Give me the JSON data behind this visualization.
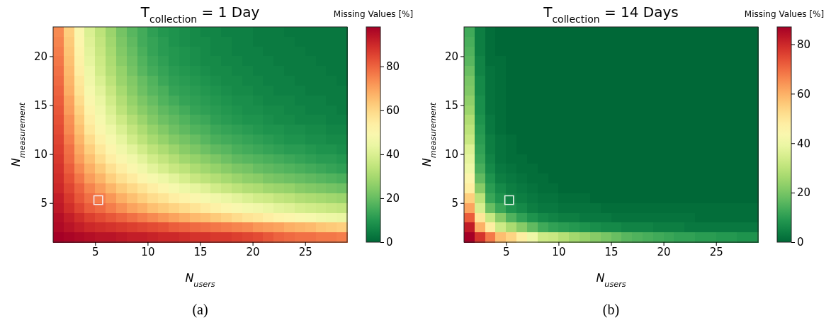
{
  "chart_data": [
    {
      "type": "heatmap",
      "title": "T$_{collection}$ = 1 Day",
      "xlabel": "N$_{users}$",
      "ylabel": "N$_{measurement}$",
      "clabel": "Missing Values [%]",
      "annotations": [
        "(a)"
      ],
      "xlim": [
        1,
        29
      ],
      "ylim": [
        1,
        23
      ],
      "xticks": [
        5,
        10,
        15,
        20,
        25
      ],
      "yticks": [
        5,
        10,
        15,
        20
      ],
      "clim": [
        0,
        98
      ],
      "cticks": [
        0,
        20,
        40,
        60,
        80
      ],
      "cells": [
        [
          74,
          62,
          50,
          40,
          34,
          28,
          22,
          18,
          15,
          12,
          10,
          9,
          8,
          7,
          6,
          6,
          5,
          5,
          5,
          4,
          4,
          4,
          3,
          3,
          3,
          3,
          3,
          3
        ],
        [
          75,
          63,
          51,
          41,
          35,
          29,
          23,
          19,
          15,
          13,
          11,
          9,
          8,
          7,
          7,
          6,
          6,
          5,
          5,
          4,
          4,
          4,
          4,
          3,
          3,
          3,
          3,
          3
        ],
        [
          76,
          64,
          52,
          42,
          36,
          30,
          24,
          20,
          16,
          13,
          11,
          10,
          9,
          8,
          7,
          6,
          6,
          5,
          5,
          5,
          4,
          4,
          4,
          4,
          3,
          3,
          3,
          3
        ],
        [
          77,
          65,
          53,
          43,
          37,
          31,
          25,
          21,
          17,
          14,
          12,
          10,
          9,
          8,
          7,
          7,
          6,
          6,
          5,
          5,
          5,
          4,
          4,
          4,
          4,
          3,
          3,
          3
        ],
        [
          78,
          66,
          54,
          45,
          38,
          32,
          27,
          22,
          18,
          15,
          13,
          11,
          10,
          9,
          8,
          7,
          7,
          6,
          6,
          5,
          5,
          5,
          4,
          4,
          4,
          4,
          3,
          3
        ],
        [
          79,
          67,
          56,
          46,
          40,
          34,
          28,
          24,
          20,
          17,
          14,
          12,
          11,
          10,
          9,
          8,
          7,
          7,
          6,
          6,
          5,
          5,
          5,
          4,
          4,
          4,
          4,
          3
        ],
        [
          80,
          68,
          57,
          48,
          42,
          36,
          30,
          25,
          21,
          18,
          16,
          13,
          12,
          11,
          10,
          9,
          8,
          7,
          7,
          6,
          6,
          5,
          5,
          5,
          4,
          4,
          4,
          4
        ],
        [
          81,
          70,
          59,
          50,
          44,
          38,
          32,
          27,
          23,
          20,
          17,
          15,
          13,
          12,
          11,
          10,
          9,
          8,
          8,
          7,
          6,
          6,
          6,
          5,
          5,
          5,
          4,
          4
        ],
        [
          82,
          71,
          61,
          52,
          46,
          40,
          34,
          29,
          25,
          22,
          19,
          17,
          15,
          13,
          12,
          11,
          10,
          9,
          8,
          8,
          7,
          7,
          6,
          6,
          5,
          5,
          5,
          4
        ],
        [
          83,
          73,
          63,
          54,
          48,
          42,
          37,
          32,
          28,
          24,
          21,
          19,
          17,
          15,
          14,
          12,
          11,
          10,
          9,
          9,
          8,
          7,
          7,
          6,
          6,
          6,
          5,
          5
        ],
        [
          84,
          74,
          65,
          56,
          50,
          45,
          40,
          35,
          31,
          27,
          24,
          21,
          19,
          17,
          16,
          14,
          13,
          12,
          11,
          10,
          9,
          9,
          8,
          8,
          7,
          7,
          6,
          6
        ],
        [
          85,
          76,
          67,
          59,
          53,
          48,
          43,
          38,
          34,
          30,
          27,
          24,
          22,
          20,
          18,
          16,
          15,
          14,
          13,
          12,
          11,
          10,
          9,
          9,
          8,
          8,
          7,
          7
        ],
        [
          86,
          78,
          69,
          62,
          56,
          51,
          46,
          42,
          38,
          34,
          31,
          28,
          25,
          23,
          21,
          19,
          18,
          16,
          15,
          14,
          13,
          12,
          11,
          11,
          10,
          9,
          9,
          8
        ],
        [
          87,
          79,
          71,
          65,
          59,
          54,
          50,
          46,
          42,
          38,
          35,
          32,
          29,
          27,
          25,
          23,
          21,
          19,
          18,
          17,
          16,
          15,
          14,
          13,
          12,
          11,
          11,
          10
        ],
        [
          88,
          81,
          74,
          68,
          63,
          58,
          54,
          50,
          46,
          42,
          39,
          36,
          34,
          31,
          29,
          27,
          25,
          23,
          22,
          20,
          19,
          18,
          17,
          16,
          15,
          14,
          13,
          12
        ],
        [
          89,
          83,
          77,
          71,
          67,
          62,
          58,
          55,
          51,
          48,
          45,
          42,
          39,
          36,
          34,
          32,
          30,
          28,
          26,
          25,
          23,
          22,
          21,
          20,
          19,
          18,
          17,
          16
        ],
        [
          90,
          85,
          80,
          75,
          71,
          67,
          63,
          60,
          57,
          54,
          51,
          48,
          45,
          43,
          41,
          38,
          36,
          34,
          32,
          31,
          29,
          28,
          27,
          25,
          24,
          23,
          22,
          21
        ],
        [
          92,
          87,
          82,
          78,
          76,
          72,
          68,
          65,
          62,
          59,
          57,
          54,
          52,
          50,
          48,
          46,
          44,
          42,
          40,
          38,
          37,
          35,
          34,
          32,
          31,
          30,
          29,
          28
        ],
        [
          93,
          89,
          85,
          81,
          79,
          76,
          73,
          70,
          68,
          65,
          63,
          61,
          59,
          57,
          55,
          53,
          51,
          49,
          47,
          46,
          44,
          42,
          41,
          39,
          38,
          37,
          36,
          35
        ],
        [
          95,
          92,
          89,
          86,
          84,
          82,
          80,
          78,
          76,
          74,
          72,
          70,
          68,
          66,
          65,
          63,
          61,
          59,
          57,
          56,
          54,
          52,
          51,
          49,
          48,
          46,
          45,
          44
        ],
        [
          96,
          94,
          92,
          90,
          89,
          88,
          87,
          86,
          85,
          84,
          83,
          81,
          80,
          79,
          78,
          77,
          76,
          75,
          74,
          72,
          71,
          70,
          68,
          67,
          66,
          64,
          63,
          62
        ],
        [
          98,
          97,
          96,
          95,
          94,
          94,
          93,
          92,
          92,
          91,
          90,
          90,
          89,
          88,
          88,
          87,
          87,
          86,
          85,
          84,
          82,
          80,
          79,
          78,
          78,
          77,
          77,
          76
        ]
      ],
      "series": [
        {
          "type": "scatter",
          "marker": "square",
          "x": [
            5.3
          ],
          "values": [
            5.3
          ],
          "color": "#f4eeee"
        }
      ]
    },
    {
      "type": "heatmap",
      "title": "T$_{collection}$ = 14 Days",
      "xlabel": "N$_{users}$",
      "ylabel": "N$_{measurement}$",
      "clabel": "Missing Values [%]",
      "annotations": [
        "(b)"
      ],
      "xlim": [
        1,
        29
      ],
      "ylim": [
        1,
        23
      ],
      "xticks": [
        5,
        10,
        15,
        20,
        25
      ],
      "yticks": [
        5,
        10,
        15,
        20
      ],
      "clim": [
        0,
        87
      ],
      "cticks": [
        0,
        20,
        40,
        60,
        80
      ],
      "cells": [
        [
          13,
          4,
          1,
          0,
          0,
          0,
          0,
          0,
          0,
          0,
          0,
          0,
          0,
          0,
          0,
          0,
          0,
          0,
          0,
          0,
          0,
          0,
          0,
          0,
          0,
          0,
          0,
          0
        ],
        [
          14,
          4,
          1,
          0,
          0,
          0,
          0,
          0,
          0,
          0,
          0,
          0,
          0,
          0,
          0,
          0,
          0,
          0,
          0,
          0,
          0,
          0,
          0,
          0,
          0,
          0,
          0,
          0
        ],
        [
          15,
          4,
          1,
          0,
          0,
          0,
          0,
          0,
          0,
          0,
          0,
          0,
          0,
          0,
          0,
          0,
          0,
          0,
          0,
          0,
          0,
          0,
          0,
          0,
          0,
          0,
          0,
          0
        ],
        [
          16,
          5,
          1,
          1,
          0,
          0,
          0,
          0,
          0,
          0,
          0,
          0,
          0,
          0,
          0,
          0,
          0,
          0,
          0,
          0,
          0,
          0,
          0,
          0,
          0,
          0,
          0,
          0
        ],
        [
          18,
          5,
          2,
          1,
          0,
          0,
          0,
          0,
          0,
          0,
          0,
          0,
          0,
          0,
          0,
          0,
          0,
          0,
          0,
          0,
          0,
          0,
          0,
          0,
          0,
          0,
          0,
          0
        ],
        [
          20,
          6,
          2,
          1,
          0,
          0,
          0,
          0,
          0,
          0,
          0,
          0,
          0,
          0,
          0,
          0,
          0,
          0,
          0,
          0,
          0,
          0,
          0,
          0,
          0,
          0,
          0,
          0
        ],
        [
          21,
          6,
          2,
          1,
          0,
          0,
          0,
          0,
          0,
          0,
          0,
          0,
          0,
          0,
          0,
          0,
          0,
          0,
          0,
          0,
          0,
          0,
          0,
          0,
          0,
          0,
          0,
          0
        ],
        [
          23,
          7,
          2,
          1,
          0,
          0,
          0,
          0,
          0,
          0,
          0,
          0,
          0,
          0,
          0,
          0,
          0,
          0,
          0,
          0,
          0,
          0,
          0,
          0,
          0,
          0,
          0,
          0
        ],
        [
          25,
          7,
          2,
          1,
          0,
          0,
          0,
          0,
          0,
          0,
          0,
          0,
          0,
          0,
          0,
          0,
          0,
          0,
          0,
          0,
          0,
          0,
          0,
          0,
          0,
          0,
          0,
          0
        ],
        [
          28,
          8,
          3,
          1,
          0,
          0,
          0,
          0,
          0,
          0,
          0,
          0,
          0,
          0,
          0,
          0,
          0,
          0,
          0,
          0,
          0,
          0,
          0,
          0,
          0,
          0,
          0,
          0
        ],
        [
          30,
          9,
          3,
          1,
          0,
          0,
          0,
          0,
          0,
          0,
          0,
          0,
          0,
          0,
          0,
          0,
          0,
          0,
          0,
          0,
          0,
          0,
          0,
          0,
          0,
          0,
          0,
          0
        ],
        [
          32,
          10,
          4,
          2,
          1,
          0,
          0,
          0,
          0,
          0,
          0,
          0,
          0,
          0,
          0,
          0,
          0,
          0,
          0,
          0,
          0,
          0,
          0,
          0,
          0,
          0,
          0,
          0
        ],
        [
          36,
          11,
          4,
          2,
          1,
          0,
          0,
          0,
          0,
          0,
          0,
          0,
          0,
          0,
          0,
          0,
          0,
          0,
          0,
          0,
          0,
          0,
          0,
          0,
          0,
          0,
          0,
          0
        ],
        [
          38,
          12,
          5,
          2,
          1,
          1,
          0,
          0,
          0,
          0,
          0,
          0,
          0,
          0,
          0,
          0,
          0,
          0,
          0,
          0,
          0,
          0,
          0,
          0,
          0,
          0,
          0,
          0
        ],
        [
          40,
          14,
          6,
          3,
          2,
          1,
          1,
          0,
          0,
          0,
          0,
          0,
          0,
          0,
          0,
          0,
          0,
          0,
          0,
          0,
          0,
          0,
          0,
          0,
          0,
          0,
          0,
          0
        ],
        [
          45,
          17,
          8,
          4,
          3,
          2,
          1,
          1,
          0,
          0,
          0,
          0,
          0,
          0,
          0,
          0,
          0,
          0,
          0,
          0,
          0,
          0,
          0,
          0,
          0,
          0,
          0,
          0
        ],
        [
          48,
          22,
          10,
          6,
          4,
          3,
          2,
          1,
          1,
          0,
          0,
          0,
          0,
          0,
          0,
          0,
          0,
          0,
          0,
          0,
          0,
          0,
          0,
          0,
          0,
          0,
          0,
          0
        ],
        [
          55,
          30,
          12,
          8,
          5,
          4,
          3,
          2,
          2,
          1,
          1,
          1,
          0,
          0,
          0,
          0,
          0,
          0,
          0,
          0,
          0,
          0,
          0,
          0,
          0,
          0,
          0,
          0
        ],
        [
          62,
          35,
          18,
          12,
          8,
          6,
          4,
          3,
          3,
          2,
          2,
          2,
          2,
          1,
          1,
          1,
          1,
          1,
          1,
          1,
          1,
          1,
          1,
          1,
          1,
          1,
          1,
          1
        ],
        [
          72,
          50,
          32,
          22,
          15,
          11,
          8,
          6,
          5,
          4,
          4,
          3,
          3,
          3,
          2,
          2,
          2,
          2,
          2,
          2,
          2,
          2,
          1,
          1,
          1,
          1,
          1,
          1
        ],
        [
          82,
          60,
          48,
          33,
          27,
          22,
          17,
          13,
          11,
          10,
          9,
          8,
          7,
          6,
          6,
          5,
          5,
          5,
          4,
          4,
          4,
          3,
          3,
          3,
          3,
          3,
          3,
          3
        ],
        [
          87,
          78,
          68,
          58,
          54,
          48,
          40,
          33,
          32,
          29,
          26,
          24,
          22,
          20,
          18,
          16,
          15,
          14,
          13,
          12,
          11,
          11,
          10,
          10,
          9,
          9,
          8,
          8
        ]
      ],
      "series": [
        {
          "type": "scatter",
          "marker": "square",
          "x": [
            5.3
          ],
          "values": [
            5.3
          ],
          "color": "#e6f4ea"
        }
      ]
    }
  ]
}
